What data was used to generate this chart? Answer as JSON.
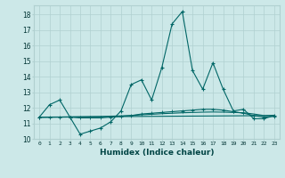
{
  "xlabel": "Humidex (Indice chaleur)",
  "background_color": "#cce8e8",
  "grid_color": "#b0d0d0",
  "line_color": "#006666",
  "xlim": [
    -0.5,
    23.5
  ],
  "ylim": [
    10,
    18.6
  ],
  "yticks": [
    10,
    11,
    12,
    13,
    14,
    15,
    16,
    17,
    18
  ],
  "xticks": [
    0,
    1,
    2,
    3,
    4,
    5,
    6,
    7,
    8,
    9,
    10,
    11,
    12,
    13,
    14,
    15,
    16,
    17,
    18,
    19,
    20,
    21,
    22,
    23
  ],
  "series1_x": [
    0,
    1,
    2,
    3,
    4,
    5,
    6,
    7,
    8,
    9,
    10,
    11,
    12,
    13,
    14,
    15,
    16,
    17,
    18,
    19,
    20,
    21,
    22,
    23
  ],
  "series1_y": [
    11.4,
    12.2,
    12.5,
    11.4,
    10.3,
    10.5,
    10.7,
    11.1,
    11.8,
    13.5,
    13.8,
    12.5,
    14.6,
    17.4,
    18.2,
    14.4,
    13.2,
    14.9,
    13.2,
    11.8,
    11.9,
    11.3,
    11.3,
    11.5
  ],
  "series2_x": [
    0,
    1,
    2,
    3,
    4,
    5,
    6,
    7,
    8,
    9,
    10,
    11,
    12,
    13,
    14,
    15,
    16,
    17,
    18,
    19,
    20,
    21,
    22,
    23
  ],
  "series2_y": [
    11.4,
    11.4,
    11.4,
    11.4,
    11.35,
    11.35,
    11.35,
    11.4,
    11.45,
    11.5,
    11.6,
    11.65,
    11.7,
    11.75,
    11.8,
    11.85,
    11.9,
    11.9,
    11.85,
    11.75,
    11.65,
    11.5,
    11.4,
    11.45
  ],
  "series3_x": [
    0,
    1,
    2,
    3,
    4,
    5,
    6,
    7,
    8,
    9,
    10,
    11,
    12,
    13,
    14,
    15,
    16,
    17,
    18,
    19,
    20,
    21,
    22,
    23
  ],
  "series3_y": [
    11.38,
    11.39,
    11.4,
    11.41,
    11.42,
    11.43,
    11.44,
    11.46,
    11.48,
    11.5,
    11.55,
    11.58,
    11.62,
    11.65,
    11.68,
    11.7,
    11.72,
    11.73,
    11.72,
    11.7,
    11.68,
    11.6,
    11.5,
    11.52
  ],
  "series4_x": [
    0,
    23
  ],
  "series4_y": [
    11.4,
    11.5
  ]
}
